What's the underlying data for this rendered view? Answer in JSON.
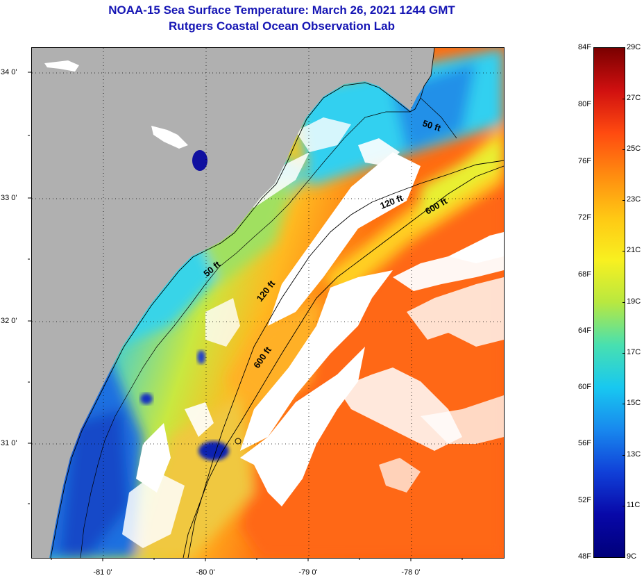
{
  "header": {
    "title": "NOAA-15 Sea Surface Temperature:  March 26, 2021 1244 GMT",
    "subtitle": "Rutgers Coastal Ocean Observation Lab"
  },
  "map": {
    "lat_labels": [
      {
        "value": 34,
        "label": "34 0'"
      },
      {
        "value": 33,
        "label": "33 0'"
      },
      {
        "value": 32,
        "label": "32 0'"
      },
      {
        "value": 31,
        "label": "31 0'"
      }
    ],
    "lon_labels": [
      {
        "value": -81,
        "label": "-81 0'"
      },
      {
        "value": -80,
        "label": "-80 0'"
      },
      {
        "value": -79,
        "label": "-79 0'"
      },
      {
        "value": -78,
        "label": "-78 0'"
      }
    ],
    "lat_range": [
      30.18,
      34.2
    ],
    "lon_range": [
      -81.67,
      -77.18
    ],
    "contours": [
      {
        "name": "50ft-north",
        "label": "50 ft"
      },
      {
        "name": "50ft-south",
        "label": "50 ft"
      },
      {
        "name": "120ft-north",
        "label": "120 ft"
      },
      {
        "name": "120ft-south",
        "label": "120 ft"
      },
      {
        "name": "600ft-north",
        "label": "600 ft"
      },
      {
        "name": "600ft-south",
        "label": "600 ft"
      }
    ],
    "land_color": "#b0b0b0",
    "cloud_color": "#ffffff"
  },
  "colorbar": {
    "fahrenheit_labels": [
      "84F",
      "80F",
      "76F",
      "72F",
      "68F",
      "64F",
      "60F",
      "56F",
      "52F",
      "48F"
    ],
    "celsius_labels": [
      "29C",
      "27C",
      "25C",
      "23C",
      "21C",
      "19C",
      "17C",
      "15C",
      "13C",
      "11C",
      "9C"
    ],
    "gradient": [
      "#7a0000",
      "#d01010",
      "#ff4a10",
      "#ff8c10",
      "#ffc814",
      "#f8f020",
      "#b8e840",
      "#48e0b0",
      "#18c8f0",
      "#1888ee",
      "#1040d8",
      "#0808a8",
      "#00007a"
    ]
  }
}
